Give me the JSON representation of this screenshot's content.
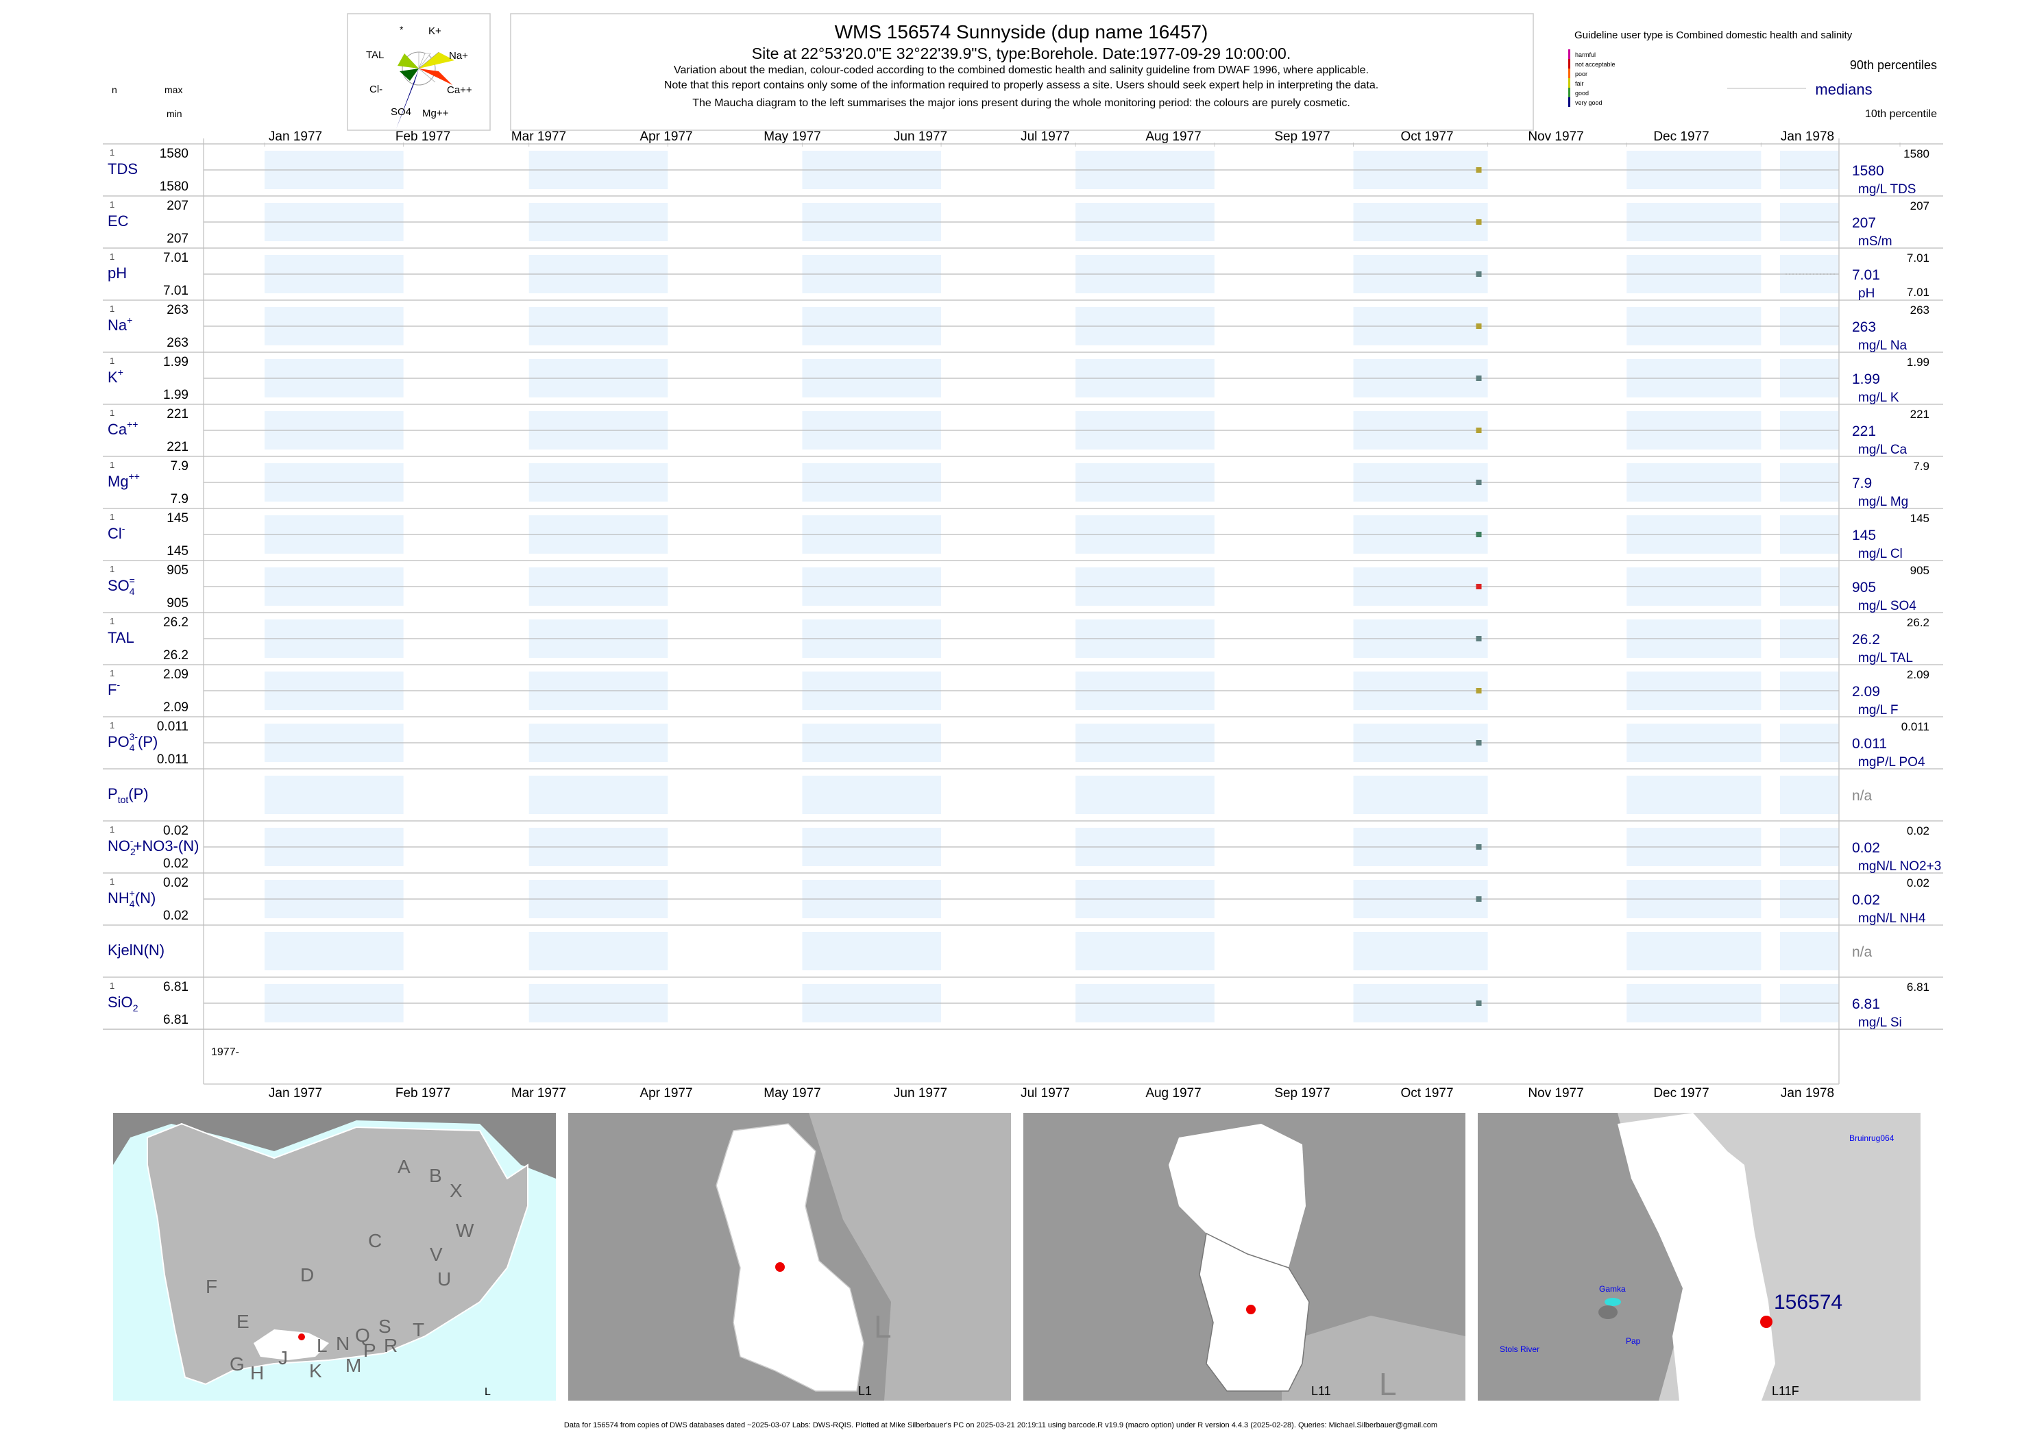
{
  "header": {
    "title": "WMS 156574  Sunnyside (dup name 16457)",
    "subtitle": "Site at 22°53'20.0\"E 32°22'39.9\"S, type:Borehole. Date:1977-09-29 10:00:00.",
    "note1": "Variation about the median,  colour-coded according to the combined domestic health and salinity guideline from DWAF 1996, where applicable.",
    "note2": "Note that this report contains only some of the information required to properly assess a site. Users should seek expert help in interpreting the data.",
    "note3": "The Maucha diagram to the left summarises the major ions present during the whole monitoring period: the colours are purely cosmetic."
  },
  "left_header": {
    "n": "n",
    "max": "max",
    "min": "min"
  },
  "maucha": {
    "labels": [
      "*",
      "K+",
      "Na+",
      "Ca++",
      "Mg++",
      "SO4",
      "Cl-",
      "TAL"
    ],
    "colors": {
      "k": "#ffffff",
      "na": "#e6e600",
      "ca": "#ff3300",
      "mg": "#ffffff",
      "so4": "#000080",
      "cl": "#006400",
      "tal": "#99cc00",
      "star": "#ffffff"
    }
  },
  "legend": {
    "title": "Guideline user type is Combined domestic health and salinity",
    "classes": [
      "harmful",
      "not acceptable",
      "poor",
      "fair",
      "good",
      "very good"
    ],
    "class_colors": [
      "#cc0099",
      "#cc0000",
      "#ff6600",
      "#cccc00",
      "#339933",
      "#000080"
    ],
    "p90": "90th percentiles",
    "median": "medians",
    "p10": "10th percentile"
  },
  "chart_data": {
    "type": "scatter",
    "x_axis_months": [
      "Jan 1977",
      "Feb 1977",
      "Mar 1977",
      "Apr 1977",
      "May 1977",
      "Jun 1977",
      "Jul 1977",
      "Aug 1977",
      "Sep 1977",
      "Oct 1977",
      "Nov 1977",
      "Dec 1977",
      "Jan 1978"
    ],
    "year_label": "1977-",
    "sample_date": "1977-09-29",
    "series": [
      {
        "name": "TDS",
        "n": "1",
        "max": "1580",
        "min": "1580",
        "median": "1580",
        "p90": "1580",
        "p10": "",
        "unit": "mg/L TDS",
        "color": "#b3a133"
      },
      {
        "name": "EC",
        "n": "1",
        "max": "207",
        "min": "207",
        "median": "207",
        "p90": "207",
        "p10": "",
        "unit": "mS/m",
        "color": "#b3a133"
      },
      {
        "name": "pH",
        "n": "1",
        "max": "7.01",
        "min": "7.01",
        "median": "7.01",
        "p90": "7.01",
        "p10": "7.01",
        "unit": "pH",
        "color": "#5f7f7f"
      },
      {
        "name": "Na",
        "sup": "+",
        "n": "1",
        "max": "263",
        "min": "263",
        "median": "263",
        "p90": "263",
        "p10": "",
        "unit": "mg/L Na",
        "color": "#b3a133"
      },
      {
        "name": "K",
        "sup": "+",
        "n": "1",
        "max": "1.99",
        "min": "1.99",
        "median": "1.99",
        "p90": "1.99",
        "p10": "",
        "unit": "mg/L K",
        "color": "#5f7f7f"
      },
      {
        "name": "Ca",
        "sup": "++",
        "n": "1",
        "max": "221",
        "min": "221",
        "median": "221",
        "p90": "221",
        "p10": "",
        "unit": "mg/L Ca",
        "color": "#b3a133"
      },
      {
        "name": "Mg",
        "sup": "++",
        "n": "1",
        "max": "7.9",
        "min": "7.9",
        "median": "7.9",
        "p90": "7.9",
        "p10": "",
        "unit": "mg/L Mg",
        "color": "#5f7f7f"
      },
      {
        "name": "Cl",
        "sup": "-",
        "n": "1",
        "max": "145",
        "min": "145",
        "median": "145",
        "p90": "145",
        "p10": "",
        "unit": "mg/L Cl",
        "color": "#3f7f5f"
      },
      {
        "name": "SO",
        "sub": "4",
        "sup": "=",
        "n": "1",
        "max": "905",
        "min": "905",
        "median": "905",
        "p90": "905",
        "p10": "",
        "unit": "mg/L SO4",
        "color": "#dd2222"
      },
      {
        "name": "TAL",
        "n": "1",
        "max": "26.2",
        "min": "26.2",
        "median": "26.2",
        "p90": "26.2",
        "p10": "",
        "unit": "mg/L TAL",
        "color": "#5f7f7f"
      },
      {
        "name": "F",
        "sup": "-",
        "n": "1",
        "max": "2.09",
        "min": "2.09",
        "median": "2.09",
        "p90": "2.09",
        "p10": "",
        "unit": "mg/L F",
        "color": "#b3a133"
      },
      {
        "name": "PO",
        "sub": "4",
        "sup": "3-",
        "suffix": "(P)",
        "n": "1",
        "max": "0.011",
        "min": "0.011",
        "median": "0.011",
        "p90": "0.011",
        "p10": "",
        "unit": "mgP/L PO4",
        "color": "#5f7f7f"
      },
      {
        "name": "P",
        "sub": "tot",
        "suffix": "(P)",
        "n": "",
        "max": "",
        "min": "",
        "median": "n/a",
        "p90": "",
        "p10": "",
        "unit": "",
        "color": ""
      },
      {
        "name": "NO",
        "sub": "2",
        "sup": "-",
        "suffix": "+NO3-(N)",
        "n": "1",
        "max": "0.02",
        "min": "0.02",
        "median": "0.02",
        "p90": "0.02",
        "p10": "",
        "unit": "mgN/L NO2+3",
        "color": "#5f7f7f"
      },
      {
        "name": "NH",
        "sub": "4",
        "sup": "+",
        "suffix": "(N)",
        "n": "1",
        "max": "0.02",
        "min": "0.02",
        "median": "0.02",
        "p90": "0.02",
        "p10": "",
        "unit": "mgN/L NH4",
        "color": "#5f7f7f"
      },
      {
        "name": "KjelN(N)",
        "n": "",
        "max": "",
        "min": "",
        "median": "n/a",
        "p90": "",
        "p10": "",
        "unit": "",
        "color": ""
      },
      {
        "name": "SiO",
        "sub": "2",
        "n": "1",
        "max": "6.81",
        "min": "6.81",
        "median": "6.81",
        "p90": "6.81",
        "p10": "",
        "unit": "mg/L Si",
        "color": "#5f7f7f"
      }
    ]
  },
  "maps": {
    "map1": {
      "letters": [
        "A",
        "B",
        "X",
        "W",
        "C",
        "V",
        "U",
        "D",
        "T",
        "F",
        "E",
        "S",
        "R",
        "Q",
        "P",
        "N",
        "M",
        "L",
        "K",
        "J",
        "H",
        "G"
      ],
      "label": "L"
    },
    "map2": {
      "label": "L1",
      "big_letter": "L"
    },
    "map3": {
      "label": "L11",
      "big_letter": "L"
    },
    "map4": {
      "label": "L11F",
      "site": "156574",
      "places": [
        "Bruinrug064",
        "Gamka",
        "Pap",
        "Stols River"
      ]
    }
  },
  "footer": "Data for 156574 from copies of DWS databases dated ~2025-03-07 Labs: DWS-RQIS. Plotted at Mike Silberbauer's PC on 2025-03-21 20:19:11 using barcode.R v19.9 (macro option) under R version 4.4.3 (2025-02-28). Queries: Michael.Silberbauer@gmail.com"
}
